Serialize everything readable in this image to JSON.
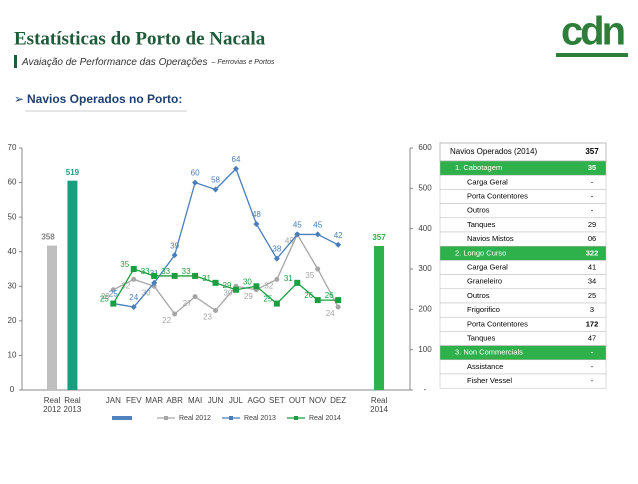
{
  "header": {
    "title": "Estatísticas do Porto de Nacala",
    "subtitle": "Avaiação de Performance das Operações",
    "subtitle_small": "– Ferrovias e Portos",
    "logo": "cdn"
  },
  "section": "Navios Operados no Porto:",
  "chart_data": {
    "type": "combo",
    "categories": [
      "Real 2012",
      "Real 2013",
      null,
      "JAN",
      "FEV",
      "MAR",
      "ABR",
      "MAI",
      "JUN",
      "JUL",
      "AGO",
      "SET",
      "OUT",
      "NOV",
      "DEZ",
      null,
      "Real 2014"
    ],
    "ylim": [
      0,
      70
    ],
    "yticks": [
      0,
      10,
      20,
      30,
      40,
      50,
      60,
      70
    ],
    "y2lim": [
      0,
      600
    ],
    "y2ticks": [
      {
        "value": 0,
        "label": "-"
      },
      100,
      200,
      300,
      400,
      500,
      600
    ],
    "series": [
      {
        "type": "bar",
        "axis": "y2",
        "color": "#4f81bd",
        "colors": [
          "#bfbfbf",
          "#1a9e80",
          null,
          null,
          null,
          null,
          null,
          null,
          null,
          null,
          null,
          null,
          null,
          null,
          null,
          null,
          "#2eb04b"
        ],
        "values": [
          358,
          519,
          null,
          null,
          null,
          null,
          null,
          null,
          null,
          null,
          null,
          null,
          null,
          null,
          null,
          null,
          357
        ]
      },
      {
        "type": "line",
        "name": "Real 2012",
        "color": "#a6a6a6",
        "marker": "circle",
        "values": [
          null,
          null,
          null,
          29,
          32,
          30,
          22,
          27,
          23,
          30,
          29,
          32,
          45,
          35,
          24,
          null,
          null
        ]
      },
      {
        "type": "line",
        "name": "Real 2013",
        "color": "#4a7ebb",
        "marker": "diamond",
        "values": [
          null,
          null,
          null,
          25,
          24,
          31,
          39,
          60,
          58,
          64,
          48,
          38,
          45,
          45,
          42,
          null,
          null
        ]
      },
      {
        "type": "line",
        "name": "Real 2014",
        "color": "#1a9e3f",
        "marker": "square",
        "values": [
          null,
          null,
          null,
          25,
          35,
          33,
          33,
          33,
          31,
          29,
          30,
          25,
          31,
          26,
          26,
          null,
          null
        ]
      }
    ]
  },
  "table": {
    "header": [
      "Navios Operados (2014)",
      "357"
    ],
    "rows": [
      [
        "1. Cabotagem",
        "35"
      ],
      [
        "Carga Geral",
        "-"
      ],
      [
        "Porta Contentores",
        "-"
      ],
      [
        "Outros",
        "-"
      ],
      [
        "Tanques",
        "29"
      ],
      [
        "Navios Mistos",
        "06"
      ],
      [
        "2. Longo Curso",
        "322"
      ],
      [
        "Carga Geral",
        "41"
      ],
      [
        "Graneleiro",
        "34"
      ],
      [
        "Outros",
        "25"
      ],
      [
        "Frigorifico",
        "3"
      ],
      [
        "Porta Contentores",
        "172"
      ],
      [
        "Tanques",
        "47"
      ],
      [
        "3. Non Commercials",
        "-"
      ],
      [
        "Assistance",
        "-"
      ],
      [
        "Fisher Vessel",
        "-"
      ]
    ]
  }
}
